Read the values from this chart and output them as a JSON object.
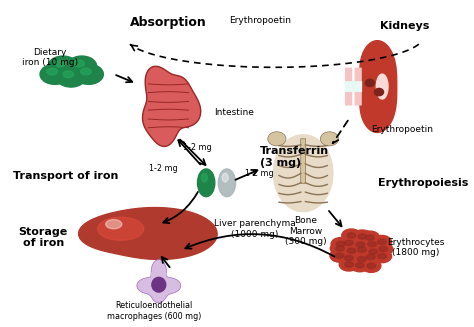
{
  "background_color": "#f5f5f5",
  "labels": {
    "dietary_iron": "Dietary\niron (10 mg)",
    "absorption": "Absorption",
    "intestine": "Intestine",
    "erythropoetin_top": "Erythropoetin",
    "kidneys": "Kidneys",
    "erythropoetin_right": "Erythropoetin",
    "transferrin": "Transferrin\n(3 mg)",
    "transport": "Transport of iron",
    "bone_marrow": "Bone\nMarrow\n(300 mg)",
    "erythropoiesis": "Erythropoiesis",
    "erythrocytes": "Erythrocytes\n(1800 mg)",
    "liver": "Liver parenchyma\n(1000 mg)",
    "storage": "Storage\nof iron",
    "reticuloendothelial": "Reticuloendothelial\nmacrophages (600 mg)"
  },
  "colors": {
    "intestine_outer": "#d95f5f",
    "intestine_inner": "#c0392b",
    "kidney_red": "#c0392b",
    "kidney_light": "#f1948a",
    "kidney_tube": "#f4c4c4",
    "liver_dark": "#a93226",
    "liver_light": "#d35400",
    "erythrocytes": "#c0392b",
    "transferrin_green": "#1e8449",
    "transferrin_gray": "#aab7b8",
    "dietary": "#1e8449",
    "bone_bg": "#e8dcc8",
    "bone_line": "#8b7355",
    "macrophage_cell": "#d2b4de",
    "macrophage_nucleus": "#6c3483",
    "arrow": "#000000"
  }
}
